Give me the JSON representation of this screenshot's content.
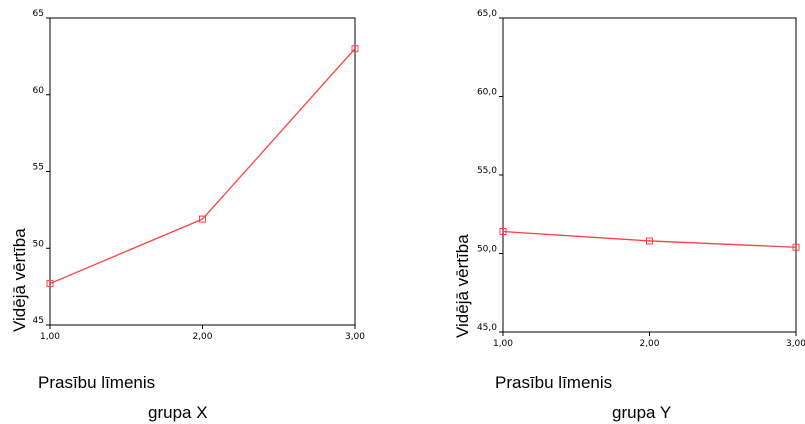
{
  "chart_data": [
    {
      "type": "line",
      "x": [
        "1,00",
        "2,00",
        "3,00"
      ],
      "values": [
        47.7,
        51.9,
        63.0
      ],
      "ylim": [
        45,
        65
      ],
      "yticks": [
        "45",
        "50",
        "55",
        "60",
        "65"
      ],
      "ylabel": "Vidējā vērtība",
      "xlabel": "Prasību līmenis",
      "caption": "grupa X",
      "line_color": "#ff4040",
      "grid": false
    },
    {
      "type": "line",
      "x": [
        "1,00",
        "2,00",
        "3,00"
      ],
      "values": [
        51.4,
        50.8,
        50.4
      ],
      "ylim": [
        45,
        65
      ],
      "yticks": [
        "45,0",
        "50,0",
        "55,0",
        "60,0",
        "65,0"
      ],
      "ylabel": "Vidējā vērtība",
      "xlabel": "Prasību līmenis",
      "caption": "grupa Y",
      "line_color": "#ff4040",
      "grid": false
    }
  ]
}
